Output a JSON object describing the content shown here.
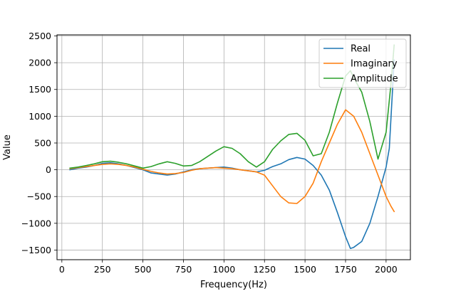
{
  "chart_data": {
    "type": "line",
    "xlabel": "Frequency(Hz)",
    "ylabel": "Value",
    "xlim": [
      -30,
      2150
    ],
    "ylim": [
      -1680,
      2520
    ],
    "xticks": [
      0,
      250,
      500,
      750,
      1000,
      1250,
      1500,
      1750,
      2000
    ],
    "yticks": [
      -1500,
      -1000,
      -500,
      0,
      500,
      1000,
      1500,
      2000,
      2500
    ],
    "grid": true,
    "legend_position": "top-right",
    "series": [
      {
        "name": "Real",
        "color": "#1f77b4",
        "points": [
          [
            50,
            0
          ],
          [
            100,
            30
          ],
          [
            150,
            50
          ],
          [
            200,
            80
          ],
          [
            250,
            120
          ],
          [
            300,
            130
          ],
          [
            350,
            110
          ],
          [
            400,
            80
          ],
          [
            450,
            40
          ],
          [
            500,
            0
          ],
          [
            550,
            -60
          ],
          [
            600,
            -80
          ],
          [
            650,
            -100
          ],
          [
            700,
            -80
          ],
          [
            750,
            -40
          ],
          [
            800,
            0
          ],
          [
            850,
            20
          ],
          [
            900,
            30
          ],
          [
            950,
            40
          ],
          [
            1000,
            50
          ],
          [
            1050,
            30
          ],
          [
            1100,
            0
          ],
          [
            1150,
            -20
          ],
          [
            1200,
            -40
          ],
          [
            1250,
            -10
          ],
          [
            1300,
            60
          ],
          [
            1350,
            110
          ],
          [
            1400,
            190
          ],
          [
            1450,
            230
          ],
          [
            1500,
            200
          ],
          [
            1550,
            80
          ],
          [
            1600,
            -100
          ],
          [
            1650,
            -380
          ],
          [
            1700,
            -800
          ],
          [
            1750,
            -1250
          ],
          [
            1780,
            -1470
          ],
          [
            1800,
            -1450
          ],
          [
            1850,
            -1340
          ],
          [
            1900,
            -1000
          ],
          [
            1950,
            -500
          ],
          [
            2000,
            50
          ],
          [
            2020,
            400
          ],
          [
            2050,
            2050
          ]
        ]
      },
      {
        "name": "Imaginary",
        "color": "#ff7f0e",
        "points": [
          [
            50,
            20
          ],
          [
            100,
            40
          ],
          [
            150,
            60
          ],
          [
            200,
            80
          ],
          [
            250,
            100
          ],
          [
            300,
            110
          ],
          [
            350,
            100
          ],
          [
            400,
            80
          ],
          [
            450,
            50
          ],
          [
            500,
            10
          ],
          [
            550,
            -30
          ],
          [
            600,
            -60
          ],
          [
            650,
            -80
          ],
          [
            700,
            -70
          ],
          [
            750,
            -50
          ],
          [
            800,
            -10
          ],
          [
            850,
            20
          ],
          [
            900,
            30
          ],
          [
            950,
            40
          ],
          [
            1000,
            30
          ],
          [
            1050,
            20
          ],
          [
            1100,
            0
          ],
          [
            1150,
            -20
          ],
          [
            1200,
            -40
          ],
          [
            1250,
            -100
          ],
          [
            1300,
            -300
          ],
          [
            1350,
            -500
          ],
          [
            1400,
            -620
          ],
          [
            1450,
            -630
          ],
          [
            1500,
            -500
          ],
          [
            1550,
            -250
          ],
          [
            1600,
            150
          ],
          [
            1650,
            500
          ],
          [
            1700,
            850
          ],
          [
            1750,
            1120
          ],
          [
            1800,
            1000
          ],
          [
            1850,
            700
          ],
          [
            1900,
            300
          ],
          [
            1950,
            -100
          ],
          [
            2000,
            -500
          ],
          [
            2030,
            -680
          ],
          [
            2050,
            -780
          ]
        ]
      },
      {
        "name": "Amplitude",
        "color": "#2ca02c",
        "points": [
          [
            50,
            30
          ],
          [
            100,
            50
          ],
          [
            150,
            80
          ],
          [
            200,
            110
          ],
          [
            250,
            150
          ],
          [
            300,
            160
          ],
          [
            350,
            140
          ],
          [
            400,
            110
          ],
          [
            450,
            70
          ],
          [
            500,
            30
          ],
          [
            550,
            60
          ],
          [
            600,
            110
          ],
          [
            650,
            150
          ],
          [
            700,
            120
          ],
          [
            750,
            70
          ],
          [
            800,
            80
          ],
          [
            850,
            150
          ],
          [
            900,
            250
          ],
          [
            950,
            350
          ],
          [
            1000,
            430
          ],
          [
            1050,
            400
          ],
          [
            1100,
            300
          ],
          [
            1150,
            150
          ],
          [
            1200,
            50
          ],
          [
            1250,
            150
          ],
          [
            1300,
            380
          ],
          [
            1350,
            540
          ],
          [
            1400,
            660
          ],
          [
            1450,
            680
          ],
          [
            1500,
            550
          ],
          [
            1550,
            260
          ],
          [
            1600,
            300
          ],
          [
            1650,
            700
          ],
          [
            1700,
            1250
          ],
          [
            1750,
            1750
          ],
          [
            1780,
            1850
          ],
          [
            1800,
            1720
          ],
          [
            1850,
            1450
          ],
          [
            1900,
            900
          ],
          [
            1950,
            200
          ],
          [
            2000,
            700
          ],
          [
            2030,
            1600
          ],
          [
            2050,
            2330
          ]
        ]
      }
    ]
  }
}
